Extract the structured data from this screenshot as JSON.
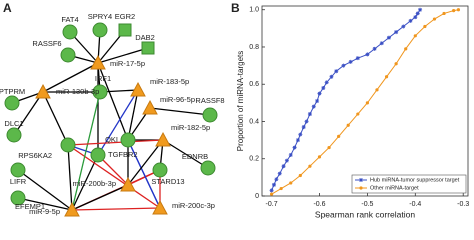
{
  "panel_labels": [
    "A",
    "B"
  ],
  "network": {
    "nodes": [
      {
        "label": "FAT4",
        "shape": "circle"
      },
      {
        "label": "SPRY4",
        "shape": "circle"
      },
      {
        "label": "EGR2",
        "shape": "square"
      },
      {
        "label": "DAB2",
        "shape": "square"
      },
      {
        "label": "RASSF6",
        "shape": "circle"
      },
      {
        "label": "miR-17-5p",
        "shape": "triangle"
      },
      {
        "label": "IRF1",
        "shape": "circle"
      },
      {
        "label": "miR-130b-3p",
        "shape": "triangle"
      },
      {
        "label": "miR-183-5p",
        "shape": "triangle"
      },
      {
        "label": "miR-96-5p",
        "shape": "triangle"
      },
      {
        "label": "PTPRM",
        "shape": "circle"
      },
      {
        "label": "DLC1",
        "shape": "circle"
      },
      {
        "label": "RASSF8",
        "shape": "circle"
      },
      {
        "label": "QKI",
        "shape": "circle"
      },
      {
        "label": "TGFBR2",
        "shape": "circle"
      },
      {
        "label": "miR-182-5p",
        "shape": "triangle"
      },
      {
        "label": "RPS6KA2",
        "shape": "circle"
      },
      {
        "label": "EDNRB",
        "shape": "circle"
      },
      {
        "label": "STARD13",
        "shape": "circle"
      },
      {
        "label": "miR-200b-3p",
        "shape": "triangle"
      },
      {
        "label": "LIFR",
        "shape": "circle"
      },
      {
        "label": "EFEMP1",
        "shape": "circle"
      },
      {
        "label": "miR-9-5p",
        "shape": "triangle"
      },
      {
        "label": "miR-200c-3p",
        "shape": "triangle"
      }
    ]
  },
  "chart_data": {
    "type": "line",
    "xlabel": "Spearman rank correlation",
    "ylabel": "Proportion of miRNA-targets",
    "xlim": [
      -0.72,
      -0.29
    ],
    "ylim": [
      0,
      1.02
    ],
    "xticks": [
      -0.7,
      -0.6,
      -0.5,
      -0.4,
      -0.3
    ],
    "yticks": [
      0,
      0.2,
      0.4,
      0.6,
      0.8,
      {
        "value": 1,
        "label": "1.0"
      }
    ],
    "legend": "lower right",
    "series": [
      {
        "name": "Hub miRNA-tumor suppressor target",
        "color": "#3a4fc4",
        "marker": "star",
        "x": [
          -0.7,
          -0.695,
          -0.69,
          -0.683,
          -0.675,
          -0.668,
          -0.66,
          -0.652,
          -0.645,
          -0.64,
          -0.633,
          -0.627,
          -0.62,
          -0.612,
          -0.605,
          -0.6,
          -0.592,
          -0.585,
          -0.575,
          -0.565,
          -0.55,
          -0.535,
          -0.52,
          -0.5,
          -0.485,
          -0.47,
          -0.455,
          -0.44,
          -0.425,
          -0.41,
          -0.4,
          -0.395,
          -0.39
        ],
        "values": [
          0.03,
          0.06,
          0.09,
          0.12,
          0.16,
          0.19,
          0.22,
          0.26,
          0.3,
          0.33,
          0.37,
          0.4,
          0.44,
          0.48,
          0.51,
          0.55,
          0.58,
          0.61,
          0.64,
          0.67,
          0.7,
          0.72,
          0.74,
          0.76,
          0.79,
          0.82,
          0.85,
          0.88,
          0.91,
          0.94,
          0.96,
          0.98,
          1
        ]
      },
      {
        "name": "Other miRNA-target",
        "color": "#f0961e",
        "marker": "circle",
        "x": [
          -0.7,
          -0.68,
          -0.66,
          -0.64,
          -0.62,
          -0.6,
          -0.58,
          -0.56,
          -0.54,
          -0.52,
          -0.5,
          -0.48,
          -0.46,
          -0.44,
          -0.42,
          -0.4,
          -0.38,
          -0.36,
          -0.34,
          -0.32,
          -0.31
        ],
        "values": [
          0.01,
          0.04,
          0.07,
          0.11,
          0.16,
          0.21,
          0.26,
          0.32,
          0.38,
          0.44,
          0.5,
          0.57,
          0.64,
          0.71,
          0.79,
          0.86,
          0.91,
          0.95,
          0.98,
          0.995,
          1
        ]
      }
    ]
  }
}
